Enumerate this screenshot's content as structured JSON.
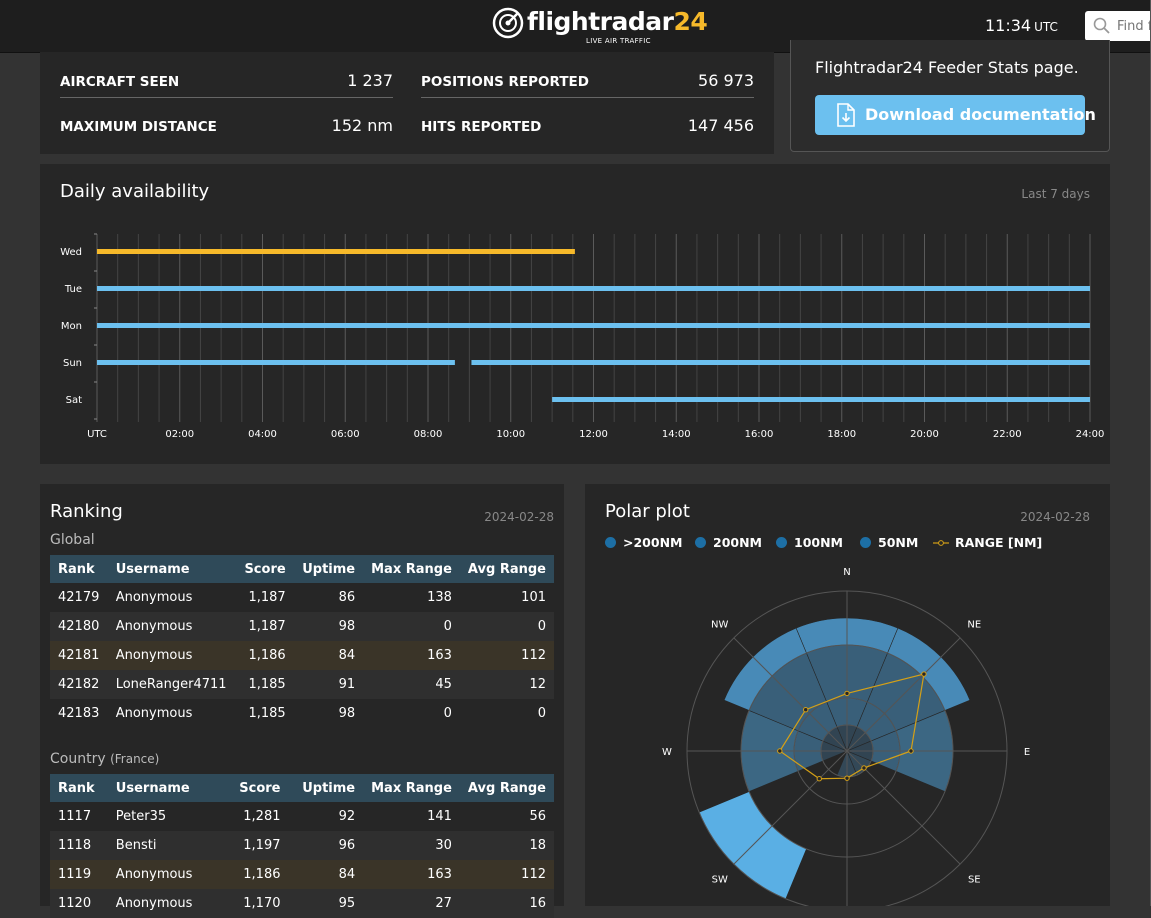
{
  "header": {
    "logo_text": "flightradar",
    "logo_num": "24",
    "logo_tagline": "LIVE AIR TRAFFIC",
    "time": "11:34",
    "timezone": "UTC",
    "search_placeholder": "Find f"
  },
  "stats": {
    "aircraft_seen_label": "AIRCRAFT SEEN",
    "aircraft_seen_value": "1 237",
    "positions_reported_label": "POSITIONS REPORTED",
    "positions_reported_value": "56 973",
    "maximum_distance_label": "MAXIMUM DISTANCE",
    "maximum_distance_value": "152 nm",
    "hits_reported_label": "HITS REPORTED",
    "hits_reported_value": "147 456"
  },
  "feeder": {
    "text": "Flightradar24 Feeder Stats page.",
    "download_label": "Download documentation"
  },
  "colors": {
    "accent_blue": "#6cc0ef",
    "today_yellow": "#f6b92a",
    "table_header": "#2f4a59",
    "highlight_row": "#3a3428",
    "polar_200plus": "#5db6ee",
    "polar_200": "#4a8fbf",
    "polar_100": "#3d6a88",
    "polar_50": "#344a5a",
    "range_line": "#d4a017"
  },
  "availability": {
    "title": "Daily availability",
    "period": "Last 7 days",
    "x_ticks": [
      "UTC",
      "02:00",
      "04:00",
      "06:00",
      "08:00",
      "10:00",
      "12:00",
      "14:00",
      "16:00",
      "18:00",
      "20:00",
      "22:00",
      "24:00"
    ],
    "rows": [
      {
        "day": "Wed",
        "today": true,
        "segments": [
          [
            0,
            11.55
          ]
        ]
      },
      {
        "day": "Tue",
        "today": false,
        "segments": [
          [
            0,
            24
          ]
        ]
      },
      {
        "day": "Mon",
        "today": false,
        "segments": [
          [
            0,
            24
          ]
        ]
      },
      {
        "day": "Sun",
        "today": false,
        "segments": [
          [
            0,
            8.65
          ],
          [
            9.05,
            24
          ]
        ]
      },
      {
        "day": "Sat",
        "today": false,
        "segments": [
          [
            11.0,
            24
          ]
        ]
      }
    ]
  },
  "ranking": {
    "title": "Ranking",
    "date": "2024-02-28",
    "global_label": "Global",
    "country_label": "Country",
    "country_name": "(France)",
    "columns": [
      "Rank",
      "Username",
      "Score",
      "Uptime",
      "Max Range",
      "Avg Range"
    ],
    "global_rows": [
      {
        "rank": "42179",
        "user": "Anonymous",
        "score": "1,187",
        "uptime": "86",
        "max": "138",
        "avg": "101",
        "me": false
      },
      {
        "rank": "42180",
        "user": "Anonymous",
        "score": "1,187",
        "uptime": "98",
        "max": "0",
        "avg": "0",
        "me": false
      },
      {
        "rank": "42181",
        "user": "Anonymous",
        "score": "1,186",
        "uptime": "84",
        "max": "163",
        "avg": "112",
        "me": true
      },
      {
        "rank": "42182",
        "user": "LoneRanger4711",
        "score": "1,185",
        "uptime": "91",
        "max": "45",
        "avg": "12",
        "me": false
      },
      {
        "rank": "42183",
        "user": "Anonymous",
        "score": "1,185",
        "uptime": "98",
        "max": "0",
        "avg": "0",
        "me": false
      }
    ],
    "country_rows": [
      {
        "rank": "1117",
        "user": "Peter35",
        "score": "1,281",
        "uptime": "92",
        "max": "141",
        "avg": "56",
        "me": false
      },
      {
        "rank": "1118",
        "user": "Bensti",
        "score": "1,197",
        "uptime": "96",
        "max": "30",
        "avg": "18",
        "me": false
      },
      {
        "rank": "1119",
        "user": "Anonymous",
        "score": "1,186",
        "uptime": "84",
        "max": "163",
        "avg": "112",
        "me": true
      },
      {
        "rank": "1120",
        "user": "Anonymous",
        "score": "1,170",
        "uptime": "95",
        "max": "27",
        "avg": "16",
        "me": false
      }
    ]
  },
  "polar": {
    "title": "Polar plot",
    "date": "2024-02-28",
    "legend": [
      {
        "label": ">200NM",
        "color": "#1d6fa5",
        "type": "dot"
      },
      {
        "label": "200NM",
        "color": "#1d6fa5",
        "type": "dot"
      },
      {
        "label": "100NM",
        "color": "#1d6fa5",
        "type": "dot"
      },
      {
        "label": "50NM",
        "color": "#1d6fa5",
        "type": "dot"
      },
      {
        "label": "RANGE [NM]",
        "color": "#d4a017",
        "type": "line"
      }
    ],
    "directions": [
      "N",
      "NE",
      "E",
      "SE",
      "S",
      "SW",
      "W",
      "NW"
    ],
    "sectors": [
      {
        "dir": "N",
        "level": 4
      },
      {
        "dir": "NE",
        "level": 4
      },
      {
        "dir": "E",
        "level": 3
      },
      {
        "dir": "SE",
        "level": 1
      },
      {
        "dir": "S",
        "level": 1
      },
      {
        "dir": "SW",
        "level": 5,
        "inner": 0.5
      },
      {
        "dir": "W",
        "level": 3
      },
      {
        "dir": "NW",
        "level": 4
      }
    ],
    "range_nm": [
      72,
      136,
      80,
      30,
      34,
      49,
      84,
      73
    ]
  }
}
